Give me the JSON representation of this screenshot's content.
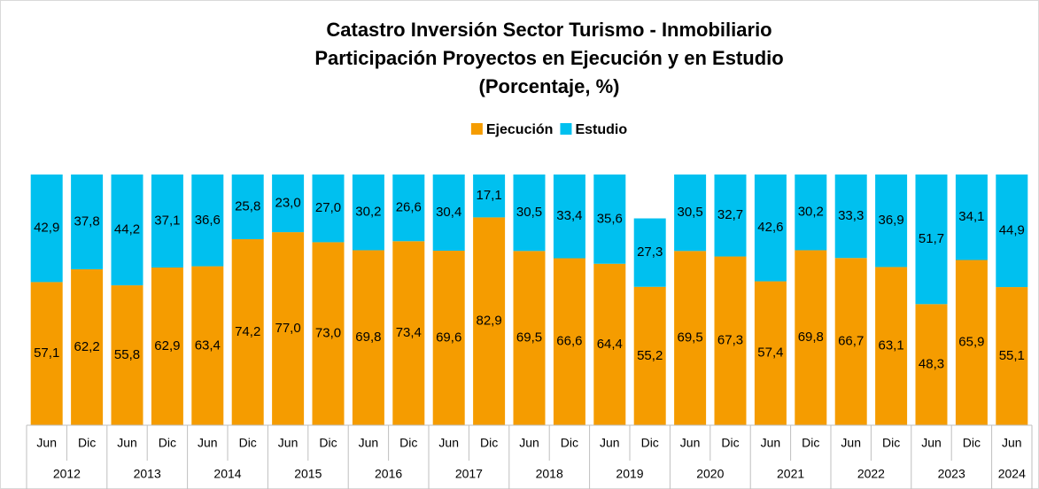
{
  "chart_data": {
    "type": "stacked_bar",
    "title": [
      "Catastro Inversión Sector Turismo - Inmobiliario",
      "Participación Proyectos en Ejecución y en Estudio",
      "(Porcentaje, %)"
    ],
    "categories": [
      [
        "Jun",
        "2012"
      ],
      [
        "Dic",
        "2012"
      ],
      [
        "Jun",
        "2013"
      ],
      [
        "Dic",
        "2013"
      ],
      [
        "Jun",
        "2014"
      ],
      [
        "Dic",
        "2014"
      ],
      [
        "Jun",
        "2015"
      ],
      [
        "Dic",
        "2015"
      ],
      [
        "Jun",
        "2016"
      ],
      [
        "Dic",
        "2016"
      ],
      [
        "Jun",
        "2017"
      ],
      [
        "Dic",
        "2017"
      ],
      [
        "Jun",
        "2018"
      ],
      [
        "Dic",
        "2018"
      ],
      [
        "Jun",
        "2019"
      ],
      [
        "Dic",
        "2019"
      ],
      [
        "Jun",
        "2020"
      ],
      [
        "Dic",
        "2020"
      ],
      [
        "Jun",
        "2021"
      ],
      [
        "Dic",
        "2021"
      ],
      [
        "Jun",
        "2022"
      ],
      [
        "Dic",
        "2022"
      ],
      [
        "Jun",
        "2023"
      ],
      [
        "Dic",
        "2023"
      ],
      [
        "Jun",
        "2024"
      ]
    ],
    "series": [
      {
        "name": "Ejecución",
        "color": "#f59c00",
        "values": [
          57.1,
          62.2,
          55.8,
          62.9,
          63.4,
          74.2,
          77.0,
          73.0,
          69.8,
          73.4,
          69.6,
          82.9,
          69.5,
          66.6,
          64.4,
          55.2,
          69.5,
          67.3,
          57.4,
          69.8,
          66.7,
          63.1,
          48.3,
          65.9,
          55.1
        ],
        "value_labels": [
          "57,1",
          "62,2",
          "55,8",
          "62,9",
          "63,4",
          "74,2",
          "77,0",
          "73,0",
          "69,8",
          "73,4",
          "69,6",
          "82,9",
          "69,5",
          "66,6",
          "64,4",
          "55,2",
          "69,5",
          "67,3",
          "57,4",
          "69,8",
          "66,7",
          "63,1",
          "48,3",
          "65,9",
          "55,1"
        ]
      },
      {
        "name": "Estudio",
        "color": "#00c0ef",
        "values": [
          42.9,
          37.8,
          44.2,
          37.1,
          36.6,
          25.8,
          23.0,
          27.0,
          30.2,
          26.6,
          30.4,
          17.1,
          30.5,
          33.4,
          35.6,
          27.3,
          30.5,
          32.7,
          42.6,
          30.2,
          33.3,
          36.9,
          51.7,
          34.1,
          44.9
        ],
        "value_labels": [
          "42,9",
          "37,8",
          "44,2",
          "37,1",
          "36,6",
          "25,8",
          "23,0",
          "27,0",
          "30,2",
          "26,6",
          "30,4",
          "17,1",
          "30,5",
          "33,4",
          "35,6",
          "27,3",
          "30,5",
          "32,7",
          "42,6",
          "30,2",
          "33,3",
          "36,9",
          "51,7",
          "34,1",
          "44,9"
        ]
      }
    ],
    "ylim": [
      0,
      100
    ]
  }
}
